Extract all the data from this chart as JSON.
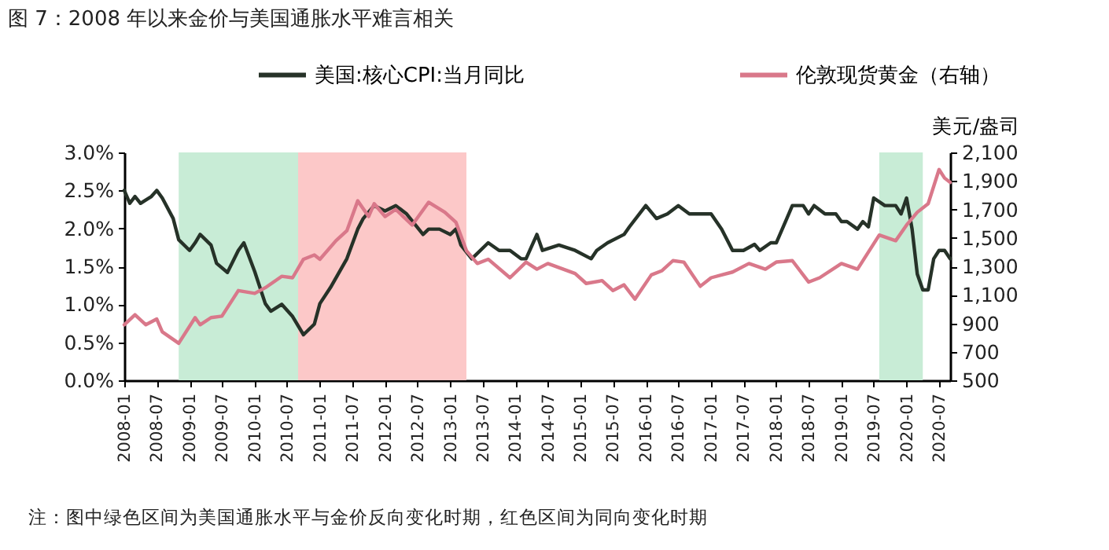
{
  "chart_data": {
    "type": "line",
    "title": "图 7：2008 年以来金价与美国通胀水平难言相关",
    "y2label": "美元/盎司",
    "annotations": [
      "注：图中绿色区间为美国通胀水平与金价反向变化时期，红色区间为同向变化时期"
    ],
    "series": [
      {
        "name": "美国:核心CPI:当月同比",
        "color": "#263228",
        "axis": "y",
        "x": [
          "2008-01",
          "2008-02",
          "2008-03",
          "2008-04",
          "2008-06",
          "2008-07",
          "2008-08",
          "2008-10",
          "2008-11",
          "2009-01",
          "2009-02",
          "2009-03",
          "2009-05",
          "2009-06",
          "2009-08",
          "2009-10",
          "2009-11",
          "2010-01",
          "2010-03",
          "2010-04",
          "2010-06",
          "2010-08",
          "2010-10",
          "2010-12",
          "2011-01",
          "2011-03",
          "2011-06",
          "2011-08",
          "2011-09",
          "2011-11",
          "2012-01",
          "2012-03",
          "2012-05",
          "2012-08",
          "2012-09",
          "2012-11",
          "2013-01",
          "2013-02",
          "2013-03",
          "2013-05",
          "2013-08",
          "2013-10",
          "2013-12",
          "2014-02",
          "2014-03",
          "2014-05",
          "2014-06",
          "2014-09",
          "2014-12",
          "2015-03",
          "2015-04",
          "2015-06",
          "2015-09",
          "2015-10",
          "2016-01",
          "2016-03",
          "2016-05",
          "2016-07",
          "2016-09",
          "2017-01",
          "2017-03",
          "2017-05",
          "2017-07",
          "2017-09",
          "2017-10",
          "2017-12",
          "2018-01",
          "2018-03",
          "2018-04",
          "2018-06",
          "2018-07",
          "2018-08",
          "2018-10",
          "2018-12",
          "2019-01",
          "2019-02",
          "2019-04",
          "2019-05",
          "2019-06",
          "2019-07",
          "2019-09",
          "2019-11",
          "2019-12",
          "2020-01",
          "2020-02",
          "2020-03",
          "2020-04",
          "2020-05",
          "2020-06",
          "2020-07",
          "2020-08",
          "2020-09"
        ],
        "values": [
          2.5,
          2.33,
          2.42,
          2.33,
          2.42,
          2.5,
          2.4,
          2.13,
          1.85,
          1.71,
          1.81,
          1.92,
          1.78,
          1.54,
          1.42,
          1.71,
          1.81,
          1.43,
          1.01,
          0.91,
          1.0,
          0.84,
          0.6,
          0.74,
          1.01,
          1.22,
          1.6,
          1.99,
          2.13,
          2.3,
          2.23,
          2.3,
          2.19,
          1.92,
          1.99,
          1.99,
          1.92,
          1.99,
          1.78,
          1.6,
          1.81,
          1.71,
          1.71,
          1.6,
          1.6,
          1.92,
          1.71,
          1.78,
          1.71,
          1.6,
          1.71,
          1.81,
          1.92,
          2.02,
          2.3,
          2.13,
          2.19,
          2.3,
          2.19,
          2.19,
          1.99,
          1.71,
          1.71,
          1.79,
          1.71,
          1.81,
          1.81,
          2.13,
          2.3,
          2.3,
          2.19,
          2.3,
          2.19,
          2.19,
          2.09,
          2.09,
          1.99,
          2.09,
          2.02,
          2.4,
          2.3,
          2.3,
          2.19,
          2.4,
          1.99,
          1.4,
          1.19,
          1.19,
          1.6,
          1.71,
          1.71,
          1.6
        ]
      },
      {
        "name": "伦敦现货黄金（右轴）",
        "color": "#d9788a",
        "axis": "y2",
        "x": [
          "2008-01",
          "2008-03",
          "2008-05",
          "2008-07",
          "2008-08",
          "2008-11",
          "2009-02",
          "2009-03",
          "2009-05",
          "2009-07",
          "2009-10",
          "2010-01",
          "2010-03",
          "2010-06",
          "2010-08",
          "2010-10",
          "2010-12",
          "2011-01",
          "2011-04",
          "2011-06",
          "2011-08",
          "2011-10",
          "2011-11",
          "2012-01",
          "2012-03",
          "2012-06",
          "2012-09",
          "2012-12",
          "2013-02",
          "2013-04",
          "2013-06",
          "2013-08",
          "2013-12",
          "2014-03",
          "2014-05",
          "2014-07",
          "2014-12",
          "2015-02",
          "2015-05",
          "2015-07",
          "2015-09",
          "2015-11",
          "2016-02",
          "2016-04",
          "2016-06",
          "2016-08",
          "2016-11",
          "2017-01",
          "2017-03",
          "2017-05",
          "2017-08",
          "2017-11",
          "2018-01",
          "2018-04",
          "2018-07",
          "2018-09",
          "2019-01",
          "2019-04",
          "2019-08",
          "2019-11",
          "2020-01",
          "2020-03",
          "2020-05",
          "2020-07",
          "2020-08",
          "2020-09"
        ],
        "values": [
          890,
          960,
          890,
          930,
          840,
          760,
          940,
          890,
          940,
          950,
          1130,
          1110,
          1150,
          1230,
          1220,
          1350,
          1380,
          1350,
          1480,
          1550,
          1760,
          1650,
          1740,
          1650,
          1700,
          1590,
          1750,
          1680,
          1610,
          1410,
          1320,
          1350,
          1220,
          1330,
          1280,
          1320,
          1250,
          1180,
          1200,
          1130,
          1170,
          1070,
          1240,
          1270,
          1340,
          1330,
          1160,
          1220,
          1240,
          1260,
          1320,
          1280,
          1330,
          1340,
          1190,
          1220,
          1320,
          1280,
          1520,
          1480,
          1590,
          1680,
          1740,
          1980,
          1920,
          1890
        ]
      }
    ],
    "xlim": [
      "2008-01",
      "2020-09"
    ],
    "xticks": [
      "2008-01",
      "2008-07",
      "2009-01",
      "2009-07",
      "2010-01",
      "2010-07",
      "2011-01",
      "2011-07",
      "2012-01",
      "2012-07",
      "2013-01",
      "2013-07",
      "2014-01",
      "2014-07",
      "2015-01",
      "2015-07",
      "2016-01",
      "2016-07",
      "2017-01",
      "2017-07",
      "2018-01",
      "2018-07",
      "2019-01",
      "2019-07",
      "2020-01",
      "2020-07"
    ],
    "ylim": [
      0,
      3
    ],
    "yticks": [
      {
        "value": 0,
        "label": "0.0%"
      },
      {
        "value": 0.5,
        "label": "0.5%"
      },
      {
        "value": 1,
        "label": "1.0%"
      },
      {
        "value": 1.5,
        "label": "1.5%"
      },
      {
        "value": 2,
        "label": "2.0%"
      },
      {
        "value": 2.5,
        "label": "2.5%"
      },
      {
        "value": 3,
        "label": "3.0%"
      }
    ],
    "y2lim": [
      500,
      2100
    ],
    "y2ticks": [
      500,
      700,
      900,
      {
        "value": 1100,
        "label": "1,100"
      },
      {
        "value": 1300,
        "label": "1,300"
      },
      {
        "value": 1500,
        "label": "1,500"
      },
      {
        "value": 1700,
        "label": "1,700"
      },
      {
        "value": 1900,
        "label": "1,900"
      },
      {
        "value": 2100,
        "label": "2,100"
      }
    ],
    "bands": [
      {
        "axis": "x",
        "from": "2008-11",
        "to": "2010-09",
        "color": "#c8ecd6"
      },
      {
        "axis": "x",
        "from": "2010-09",
        "to": "2013-04",
        "color": "#fcc8c8"
      },
      {
        "axis": "x",
        "from": "2019-08",
        "to": "2020-04",
        "color": "#c8ecd6"
      }
    ],
    "legend": "top",
    "grid": false,
    "marker": "none",
    "line_style": "solid"
  }
}
